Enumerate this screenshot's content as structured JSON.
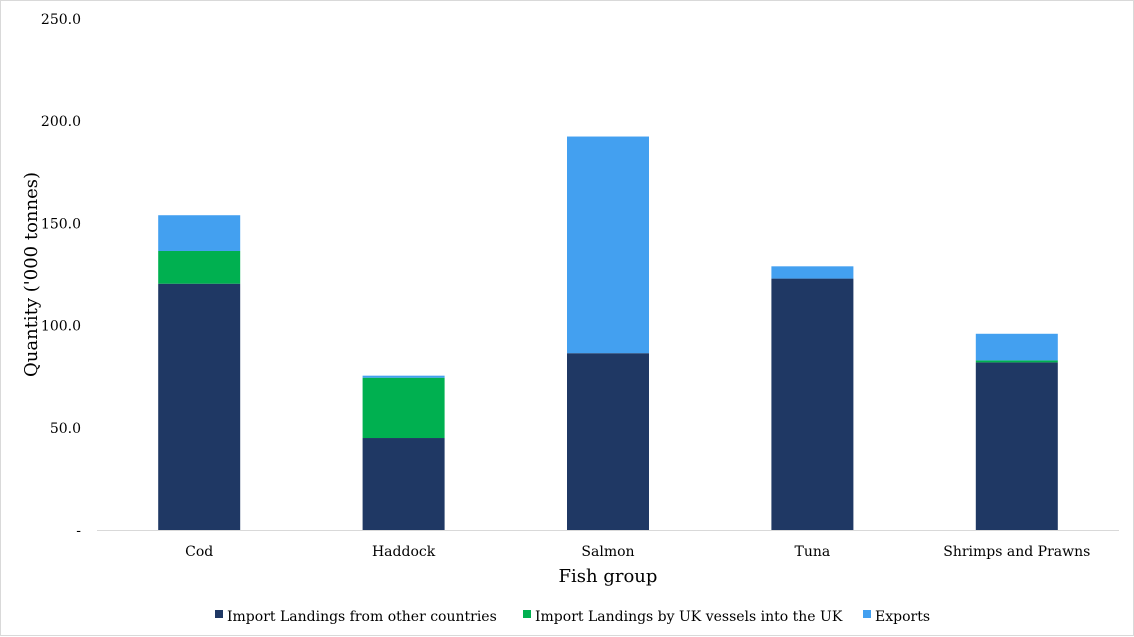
{
  "chart_data": {
    "type": "bar",
    "stacked": true,
    "categories": [
      "Cod",
      "Haddock",
      "Salmon",
      "Tuna",
      "Shrimps and Prawns"
    ],
    "series": [
      {
        "name": "Import Landings from other countries",
        "values": [
          120.5,
          45.0,
          86.5,
          123.0,
          82.0
        ],
        "color": "#1f3864"
      },
      {
        "name": "Import Landings by UK vessels into the UK",
        "values": [
          16.0,
          29.5,
          0.0,
          0.0,
          1.0
        ],
        "color": "#00b050"
      },
      {
        "name": "Exports",
        "values": [
          17.5,
          1.0,
          106.0,
          6.0,
          13.0
        ],
        "color": "#43a0f0"
      }
    ],
    "xlabel": "Fish group",
    "ylabel": "Quantity ('000 tonnes)",
    "ylim": [
      0,
      250
    ],
    "yticks": [
      "-",
      "50.0",
      "100.0",
      "150.0",
      "200.0",
      "250.0"
    ],
    "grid": false,
    "legend_position": "bottom"
  }
}
